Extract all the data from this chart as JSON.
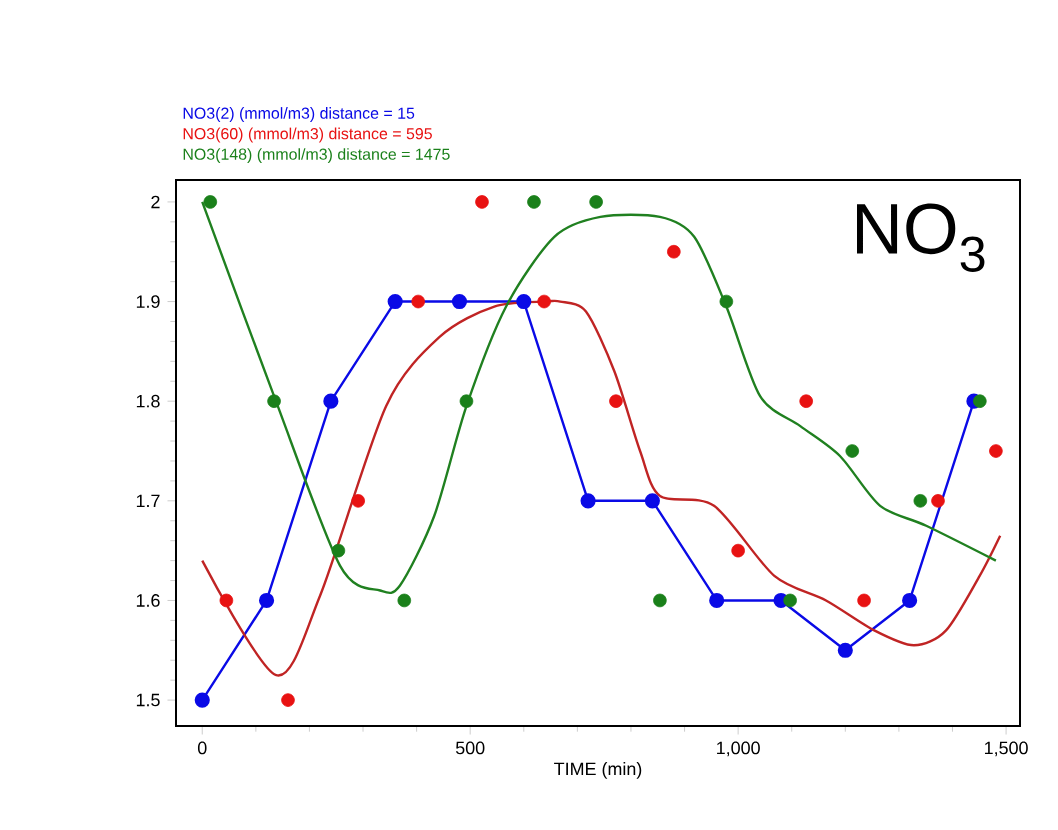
{
  "chart_data": {
    "type": "scatter",
    "xlabel": "TIME (min)",
    "annotations": [
      "NO$_{3}$"
    ],
    "xlim": [
      -49,
      1526
    ],
    "ylim": [
      1.474,
      2.022
    ],
    "xticks": [
      0,
      500,
      {
        "value": 1000,
        "label": "1,000"
      },
      {
        "value": 1500,
        "label": "1,500"
      }
    ],
    "yticks": [
      1.5,
      1.6,
      1.7,
      1.8,
      1.9,
      {
        "value": 2.0,
        "label": "2"
      }
    ],
    "grid": false,
    "legend": "top left",
    "marker": "circle",
    "series": [
      {
        "name": "NO3(2) (mmol/m3)   distance = 15",
        "type": "line",
        "color": "#0a0ae6",
        "x": [
          0,
          120,
          240,
          360,
          480,
          600,
          720,
          840,
          960,
          1080,
          1200,
          1320,
          1440
        ],
        "values": [
          1.5,
          1.6,
          1.8,
          1.9,
          1.9,
          1.9,
          1.7,
          1.7,
          1.6,
          1.6,
          1.55,
          1.6,
          1.8
        ]
      },
      {
        "name": "NO3(60) (mmol/m3)   distance = 595",
        "color": "#e81212",
        "x": [
          45,
          160,
          291,
          403,
          522,
          638,
          772,
          880,
          1000,
          1127,
          1235,
          1373,
          1481
        ],
        "values": [
          1.6,
          1.5,
          1.7,
          1.9,
          2.0,
          1.9,
          1.8,
          1.95,
          1.65,
          1.8,
          1.6,
          1.7,
          1.75
        ]
      },
      {
        "name": "NO3(148) (mmol/m3)   distance = 1475",
        "color": "#1a801a",
        "x": [
          15,
          134,
          254,
          377,
          493,
          619,
          735,
          854,
          978,
          1097,
          1213,
          1340,
          1451
        ],
        "values": [
          2.0,
          1.8,
          1.65,
          1.6,
          1.8,
          2.0,
          2.0,
          1.6,
          1.9,
          1.6,
          1.75,
          1.7,
          1.8
        ]
      },
      {
        "type": "line",
        "marker": "none",
        "color": "#c02424",
        "x": [
          0,
          138,
          220,
          343,
          444,
          545,
          642,
          668,
          716,
          769,
          817,
          854,
          955,
          1067,
          1164,
          1254,
          1328,
          1388,
          1451,
          1489
        ],
        "values": [
          1.64,
          1.525,
          1.605,
          1.795,
          1.865,
          1.895,
          1.9,
          1.9,
          1.89,
          1.83,
          1.75,
          1.705,
          1.695,
          1.625,
          1.6,
          1.57,
          1.555,
          1.57,
          1.625,
          1.665
        ]
      },
      {
        "type": "line",
        "marker": "none",
        "color": "#208020",
        "x": [
          0,
          134,
          257,
          332,
          369,
          433,
          493,
          567,
          657,
          743,
          854,
          918,
          978,
          1041,
          1116,
          1190,
          1265,
          1351,
          1481
        ],
        "values": [
          2.0,
          1.805,
          1.635,
          1.61,
          1.615,
          1.685,
          1.795,
          1.895,
          1.965,
          1.985,
          1.985,
          1.965,
          1.895,
          1.805,
          1.775,
          1.745,
          1.695,
          1.675,
          1.64
        ]
      }
    ]
  }
}
